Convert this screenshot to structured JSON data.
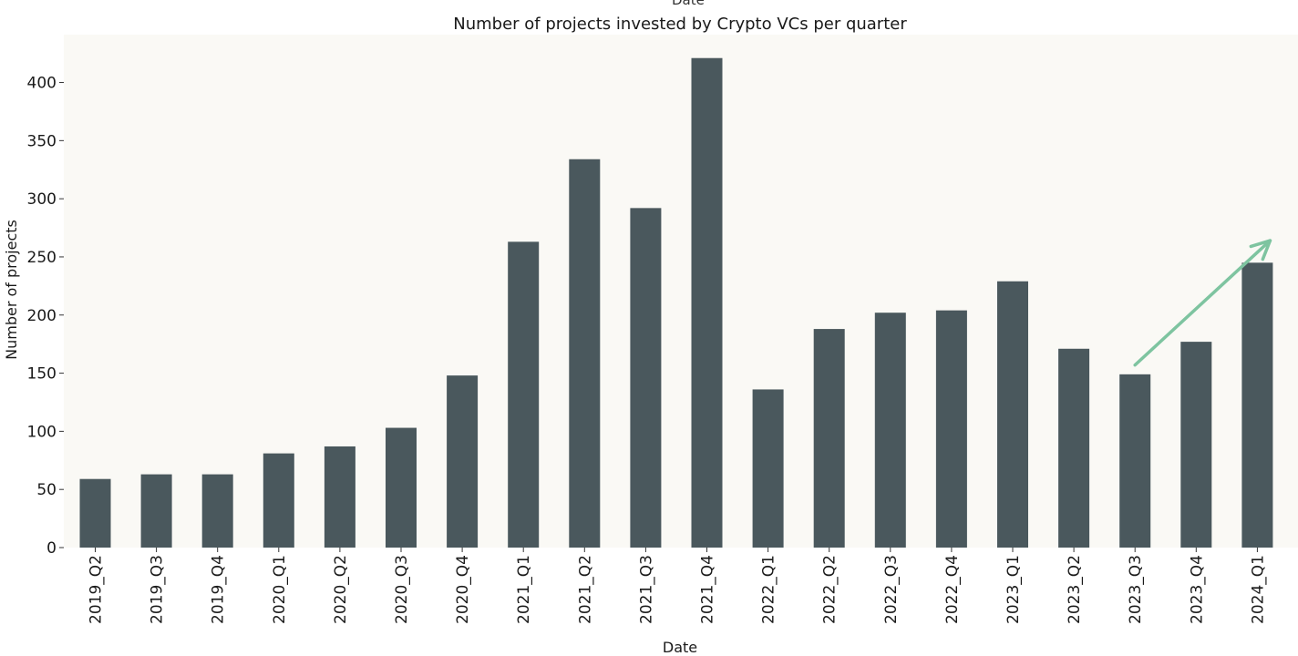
{
  "top_cut_text": "Date",
  "chart_data": {
    "type": "bar",
    "title": "Number of projects invested by Crypto VCs per quarter",
    "xlabel": "Date",
    "ylabel": "Number of projects",
    "categories": [
      "2019_Q2",
      "2019_Q3",
      "2019_Q4",
      "2020_Q1",
      "2020_Q2",
      "2020_Q3",
      "2020_Q4",
      "2021_Q1",
      "2021_Q2",
      "2021_Q3",
      "2021_Q4",
      "2022_Q1",
      "2022_Q2",
      "2022_Q3",
      "2022_Q4",
      "2023_Q1",
      "2023_Q2",
      "2023_Q3",
      "2023_Q4",
      "2024_Q1"
    ],
    "values": [
      59,
      63,
      63,
      81,
      87,
      103,
      148,
      263,
      334,
      292,
      421,
      136,
      188,
      202,
      204,
      229,
      171,
      149,
      177,
      245
    ],
    "ylim": [
      0,
      440
    ],
    "yticks": [
      0,
      50,
      100,
      150,
      200,
      250,
      300,
      350,
      400
    ],
    "grid": false,
    "colors": {
      "bar": "#4a585d",
      "plot_background": "#faf9f5",
      "arrow": "#7ec4a0"
    },
    "annotation": {
      "type": "arrow",
      "from": {
        "category": "2023_Q3",
        "y": 157
      },
      "to": {
        "category": "2024_Q1",
        "y": 264
      }
    }
  }
}
